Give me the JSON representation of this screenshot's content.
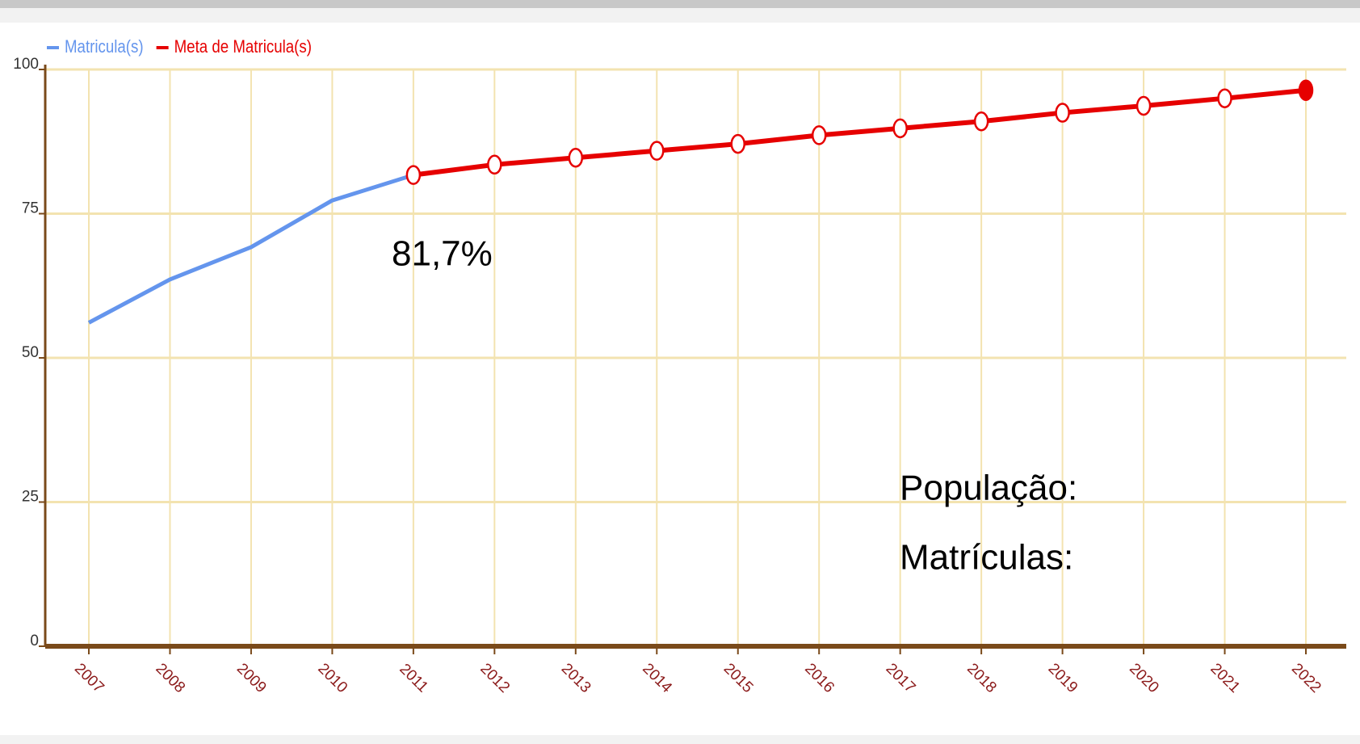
{
  "chart_data": {
    "type": "line",
    "categories": [
      "2007",
      "2008",
      "2009",
      "2010",
      "2011",
      "2012",
      "2013",
      "2014",
      "2015",
      "2016",
      "2017",
      "2018",
      "2019",
      "2020",
      "2021",
      "2022"
    ],
    "series": [
      {
        "name": "Matricula(s)",
        "color": "#6495ed",
        "values": [
          56.1,
          63.6,
          69.2,
          77.3,
          81.7,
          null,
          null,
          null,
          null,
          null,
          null,
          null,
          null,
          null,
          null,
          null
        ]
      },
      {
        "name": "Meta de Matricula(s)",
        "color": "#e60000",
        "values": [
          null,
          null,
          null,
          null,
          81.7,
          83.5,
          84.7,
          85.9,
          87.1,
          88.6,
          89.8,
          91.0,
          92.5,
          93.7,
          95.0,
          96.4
        ]
      }
    ],
    "ylim": [
      0,
      100
    ],
    "yticks": [
      0,
      25,
      50,
      75,
      100
    ],
    "grid": true,
    "legend": "top-left",
    "annotations": [
      "81,7%",
      "População:",
      "Matrículas:"
    ]
  }
}
